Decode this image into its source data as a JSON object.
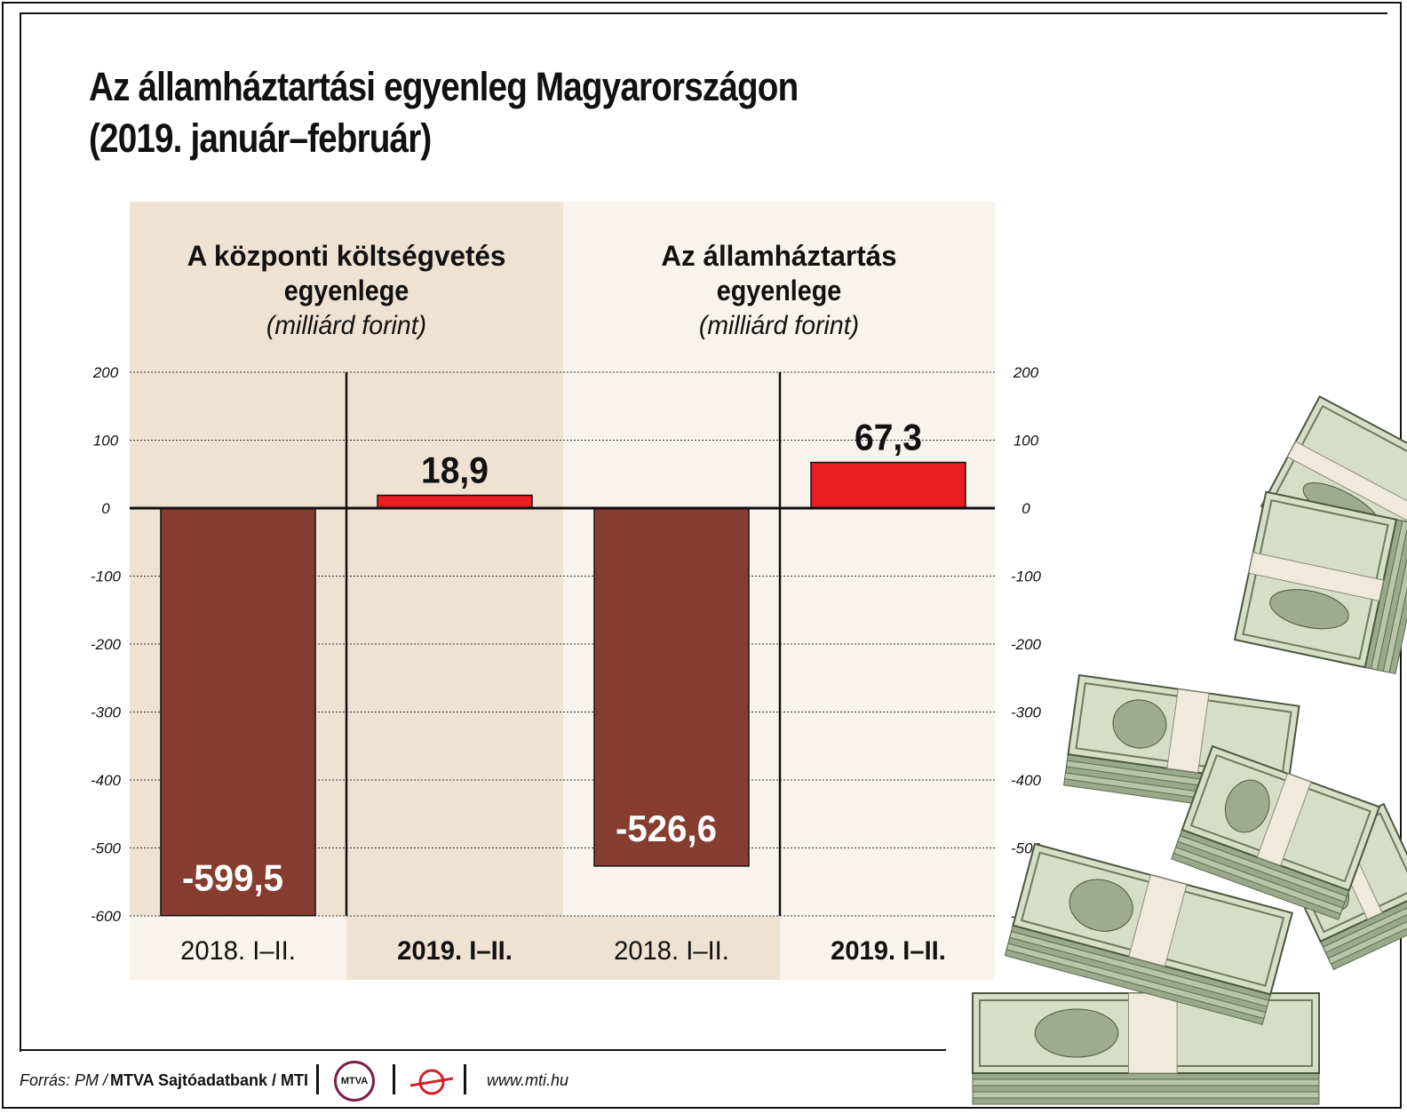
{
  "title_line1": "Az államháztartási egyenleg Magyarországon",
  "title_line2": "(2019. január–február)",
  "footer": {
    "source_label": "Forrás: PM /",
    "agency": "MTVA Sajtóadatbank / MTI",
    "logo1_text": "MTVA",
    "website": "www.mti.hu"
  },
  "colors": {
    "panel_dark": "#efe2d2",
    "panel_light": "#f8f3ec",
    "bar_negative": "#863d30",
    "bar_positive": "#ea1c24",
    "axis": "#111111"
  },
  "chart_data": [
    {
      "type": "bar",
      "title": "A központi költségvetés egyenlege",
      "title_lines": [
        "A központi költségvetés",
        "egyenlege"
      ],
      "subtitle": "(milliárd forint)",
      "categories": [
        "2018. I–II.",
        "2019. I–II."
      ],
      "values": [
        -599.5,
        18.9
      ],
      "value_labels": [
        "-599,5",
        "18,9"
      ],
      "ylim": [
        -600,
        200
      ],
      "yticks": [
        "200",
        "100",
        "0",
        "-100",
        "-200",
        "-300",
        "-400",
        "-500",
        "-600"
      ],
      "grid": true
    },
    {
      "type": "bar",
      "title": "Az államháztartás egyenlege",
      "title_lines": [
        "Az államháztartás",
        "egyenlege"
      ],
      "subtitle": "(milliárd forint)",
      "categories": [
        "2018. I–II.",
        "2019. I–II."
      ],
      "values": [
        -526.6,
        67.3
      ],
      "value_labels": [
        "-526,6",
        "67,3"
      ],
      "ylim": [
        -600,
        200
      ],
      "yticks": [
        "200",
        "100",
        "0",
        "-100",
        "-200",
        "-300",
        "-400",
        "-500",
        "-600"
      ],
      "grid": true
    }
  ]
}
